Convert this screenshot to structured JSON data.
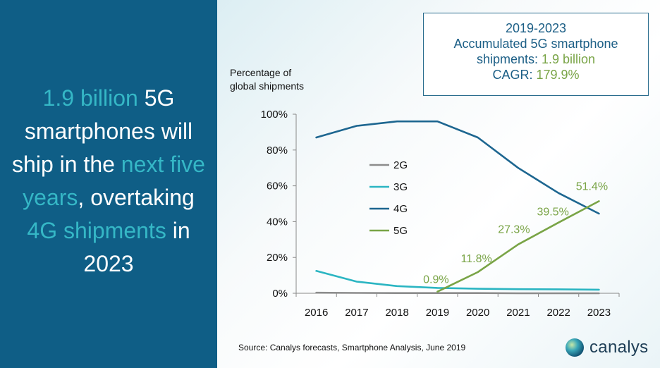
{
  "headline": {
    "part1": "1.9 billion",
    "part2": " 5G smartphones will ship in the ",
    "part3": "next five years",
    "part4": ", overtaking ",
    "part5": "4G shipments",
    "part6": " in 2023"
  },
  "info_box": {
    "line1": "2019-2023",
    "line2": "Accumulated 5G smartphone",
    "line3_label": "shipments: ",
    "line3_value": "1.9 billion",
    "line4_label": "CAGR: ",
    "line4_value": "179.9%"
  },
  "source": "Source: Canalys forecasts, Smartphone Analysis, June 2019",
  "logo_text": "canalys",
  "colors": {
    "panel": "#0f5e86",
    "highlight": "#35b7c6",
    "s2G": "#8c8c8c",
    "s3G": "#2bb5c2",
    "s4G": "#1d6690",
    "s5G": "#79a446"
  },
  "chart_data": {
    "type": "line",
    "ylabel_line1": "Percentage of",
    "ylabel_line2": "global shipments",
    "x": [
      "2016",
      "2017",
      "2018",
      "2019",
      "2020",
      "2021",
      "2022",
      "2023"
    ],
    "ylim": [
      0,
      100
    ],
    "yticks": [
      "0%",
      "20%",
      "40%",
      "60%",
      "80%",
      "100%"
    ],
    "legend_position": "middle-left",
    "series": [
      {
        "name": "2G",
        "values": [
          0.3,
          0.2,
          0.1,
          0.1,
          0.1,
          0.0,
          0.0,
          0.0
        ]
      },
      {
        "name": "3G",
        "values": [
          12.5,
          6.5,
          4.0,
          3.0,
          2.5,
          2.3,
          2.2,
          2.0
        ]
      },
      {
        "name": "4G",
        "values": [
          87,
          93.5,
          96,
          96,
          87,
          70,
          56,
          44.5
        ]
      },
      {
        "name": "5G",
        "values": [
          null,
          null,
          null,
          0.9,
          11.8,
          27.3,
          39.5,
          51.4
        ]
      }
    ],
    "data_labels": [
      "0.9%",
      "11.8%",
      "27.3%",
      "39.5%",
      "51.4%"
    ]
  }
}
